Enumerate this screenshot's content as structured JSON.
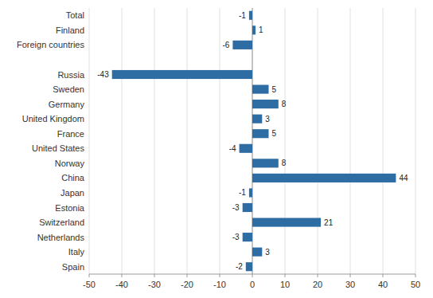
{
  "chart_data": {
    "type": "bar",
    "orientation": "horizontal",
    "categories": [
      "Total",
      "Finland",
      "Foreign countries",
      null,
      "Russia",
      "Sweden",
      "Germany",
      "United Kingdom",
      "France",
      "United States",
      "Norway",
      "China",
      "Japan",
      "Estonia",
      "Switzerland",
      "Netherlands",
      "Italy",
      "Spain"
    ],
    "values": [
      -1,
      1,
      -6,
      null,
      -43,
      5,
      8,
      3,
      5,
      -4,
      8,
      44,
      -1,
      -3,
      21,
      -3,
      3,
      -2
    ],
    "color": "#2e6da4",
    "xlim": [
      -50,
      50
    ],
    "xticks": [
      -50,
      -40,
      -30,
      -20,
      -10,
      0,
      10,
      20,
      30,
      40,
      50
    ],
    "grid": true,
    "data_labels": true
  }
}
